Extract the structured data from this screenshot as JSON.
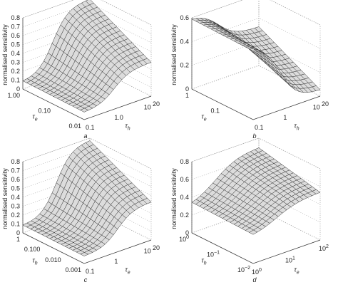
{
  "panels": [
    {
      "letter": "a",
      "zlabel": "normalised sensitivity",
      "zticks": [
        0,
        0.1,
        0.2,
        0.3,
        0.4,
        0.5,
        0.6,
        0.7,
        0.8
      ],
      "left_ticks": [
        "1.00",
        "0.10",
        "0.01"
      ],
      "left_label": {
        "symbol": "τ",
        "subscript": "e"
      },
      "right_ticks": [
        "0.1",
        "1.0",
        "10",
        "20"
      ],
      "right_label": {
        "symbol": "τ",
        "subscript": "h"
      }
    },
    {
      "letter": "b",
      "zlabel": "normalised sensitivity",
      "zticks": [
        0,
        0.2,
        0.4,
        0.6
      ],
      "left_ticks": [
        "1",
        "0.1"
      ],
      "left_label": {
        "symbol": "τ",
        "subscript": "e"
      },
      "right_ticks": [
        "0.1",
        "1",
        "10",
        "20"
      ],
      "right_label": {
        "symbol": "τ",
        "subscript": "h"
      }
    },
    {
      "letter": "c",
      "zlabel": "normalised sensitivity",
      "zticks": [
        0,
        0.1,
        0.2,
        0.3,
        0.4,
        0.5,
        0.6,
        0.7,
        0.8
      ],
      "left_ticks": [
        "1",
        "0.100",
        "0.010",
        "0.001"
      ],
      "left_label": {
        "symbol": "τ",
        "subscript": "h"
      },
      "right_ticks": [
        "0.1",
        "1",
        "10",
        "20"
      ],
      "right_label": {
        "symbol": "τ",
        "subscript": "e"
      }
    },
    {
      "letter": "d",
      "zlabel": "normalised sensitivity",
      "zticks": [
        0,
        0.2,
        0.4,
        0.6,
        0.8
      ],
      "left_ticks": [
        {
          "base": "10",
          "exp": "0"
        },
        {
          "base": "10",
          "exp": "−1"
        },
        {
          "base": "10",
          "exp": "−2"
        }
      ],
      "left_label": {
        "symbol": "τ",
        "subscript": "h"
      },
      "right_ticks": [
        {
          "base": "10",
          "exp": "0"
        },
        {
          "base": "10",
          "exp": "1"
        },
        {
          "base": "10",
          "exp": "2"
        }
      ],
      "right_label": {
        "symbol": "τ",
        "subscript": "e"
      }
    }
  ]
}
